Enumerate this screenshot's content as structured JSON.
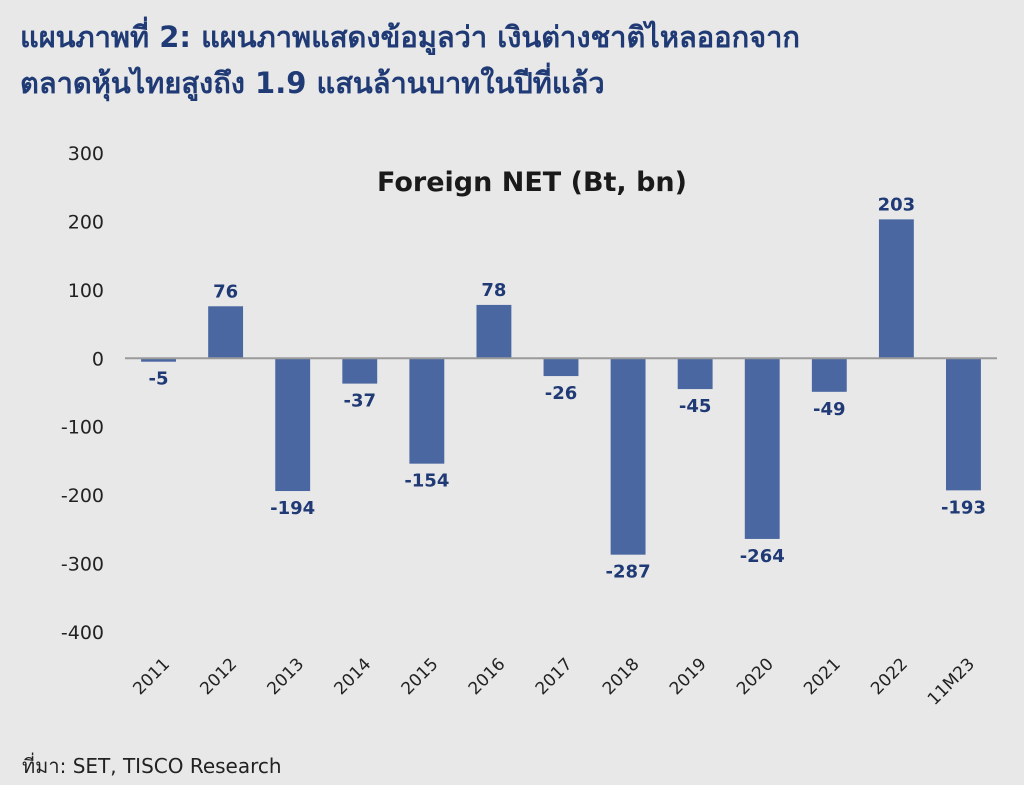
{
  "page": {
    "title_line1": "แผนภาพที่ 2: แผนภาพแสดงข้อมูลว่า เงินต่างชาติไหลออกจาก",
    "title_line2": "ตลาดหุ้นไทยสูงถึง 1.9 แสนล้านบาทในปีที่แล้ว",
    "source": "ที่มา: SET, TISCO Research"
  },
  "colors": {
    "bar": "#4a67a1",
    "label": "#1f3a75",
    "title": "#1f3a75"
  },
  "chart_data": {
    "type": "bar",
    "title": "Foreign NET (Bt, bn)",
    "categories": [
      "2011",
      "2012",
      "2013",
      "2014",
      "2015",
      "2016",
      "2017",
      "2018",
      "2019",
      "2020",
      "2021",
      "2022",
      "11M23"
    ],
    "values": [
      -5,
      76,
      -194,
      -37,
      -154,
      78,
      -26,
      -287,
      -45,
      -264,
      -49,
      203,
      -193
    ],
    "ylim": [
      -400,
      300
    ],
    "yticks": [
      300,
      200,
      100,
      0,
      -100,
      -200,
      -300,
      -400
    ],
    "grid": false,
    "legend": "none"
  }
}
